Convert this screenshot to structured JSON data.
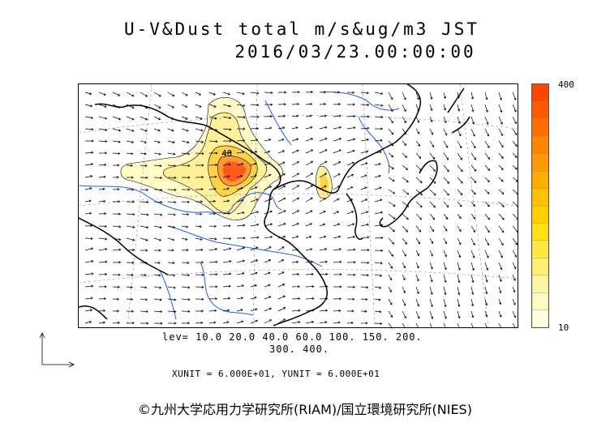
{
  "title": {
    "line1": "U-V&Dust total m/s&ug/m3 JST",
    "line2": "2016/03/23.00:00:00"
  },
  "colorbar": {
    "max_label": "400",
    "min_label": "10",
    "colors": [
      "#ffffe0",
      "#fffac0",
      "#fff5a0",
      "#ffee70",
      "#ffe840",
      "#ffe010",
      "#ffd000",
      "#ffc000",
      "#ffae00",
      "#ff9a00",
      "#ff8500",
      "#ff6f00",
      "#ff5a00",
      "#ff4500"
    ]
  },
  "legend": {
    "levels_line1": "lev= 10.0 20.0 40.0 60.0 100. 150. 200.",
    "levels_line2": "300. 400."
  },
  "units": {
    "text": "XUNIT = 6.000E+01, YUNIT = 6.000E+01"
  },
  "contour_label": "40",
  "credit": "©九州大学応用力学研究所(RIAM)/国立環境研究所(NIES)",
  "colors": {
    "coast": "#000000",
    "rivers": "#1a5cff",
    "arrows": "#000000"
  }
}
